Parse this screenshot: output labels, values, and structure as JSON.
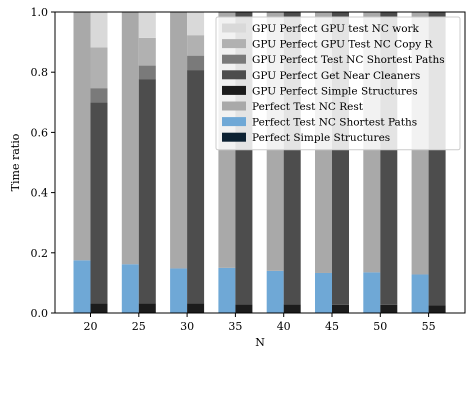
{
  "chart_data": {
    "type": "bar",
    "stacked": true,
    "grouped_pairs": true,
    "title": "",
    "xlabel": "N",
    "ylabel": "Time ratio",
    "categories": [
      "20",
      "25",
      "30",
      "35",
      "40",
      "45",
      "50",
      "55"
    ],
    "ylim": [
      0,
      1
    ],
    "yticks": [
      "0.0",
      "0.2",
      "0.4",
      "0.6",
      "0.8",
      "1.0"
    ],
    "grid": false,
    "legend_position": "top-right",
    "left_bar": {
      "series": [
        {
          "name": "Perfect Simple Structures",
          "color": "#0d2233",
          "values": [
            0,
            0,
            0,
            0,
            0,
            0,
            0,
            0
          ]
        },
        {
          "name": "Perfect Test NC Shortest Paths",
          "color": "#6fa8d6",
          "values": [
            0.175,
            0.162,
            0.148,
            0.15,
            0.14,
            0.133,
            0.135,
            0.128
          ]
        },
        {
          "name": "Perfect Test NC Rest",
          "color": "#a9a9a9",
          "values": [
            0.825,
            0.838,
            0.852,
            0.85,
            0.86,
            0.867,
            0.865,
            0.872
          ]
        }
      ]
    },
    "right_bar": {
      "series": [
        {
          "name": "GPU Perfect Simple Structures",
          "color": "#1c1c1c",
          "values": [
            0.032,
            0.032,
            0.032,
            0.029,
            0.029,
            0.027,
            0.027,
            0.026
          ]
        },
        {
          "name": "GPU Perfect Get Near Cleaners",
          "color": "#4d4d4d",
          "values": [
            0.668,
            0.745,
            0.775,
            0.971,
            0.971,
            0.973,
            0.973,
            0.974
          ]
        },
        {
          "name": "GPU Perfect Test NC Shortest Paths",
          "color": "#7a7a7a",
          "values": [
            0.047,
            0.045,
            0.048,
            0,
            0,
            0,
            0,
            0
          ]
        },
        {
          "name": "GPU Perfect GPU Test NC Copy R",
          "color": "#b1b1b1",
          "values": [
            0.135,
            0.092,
            0.068,
            0,
            0,
            0,
            0,
            0
          ]
        },
        {
          "name": "GPU Perfect GPU test NC work",
          "color": "#d9d9d9",
          "values": [
            0.118,
            0.086,
            0.077,
            0,
            0,
            0,
            0,
            0
          ]
        }
      ]
    },
    "legend": [
      {
        "label": "GPU Perfect GPU test NC work",
        "color": "#d9d9d9"
      },
      {
        "label": "GPU Perfect GPU Test NC Copy R",
        "color": "#b1b1b1"
      },
      {
        "label": "GPU Perfect Test NC Shortest Paths",
        "color": "#7a7a7a"
      },
      {
        "label": "GPU Perfect Get Near Cleaners",
        "color": "#4d4d4d"
      },
      {
        "label": "GPU Perfect Simple Structures",
        "color": "#1c1c1c"
      },
      {
        "label": "Perfect Test NC Rest",
        "color": "#a9a9a9"
      },
      {
        "label": "Perfect Test NC Shortest Paths",
        "color": "#6fa8d6"
      },
      {
        "label": "Perfect Simple Structures",
        "color": "#0d2233"
      }
    ]
  }
}
